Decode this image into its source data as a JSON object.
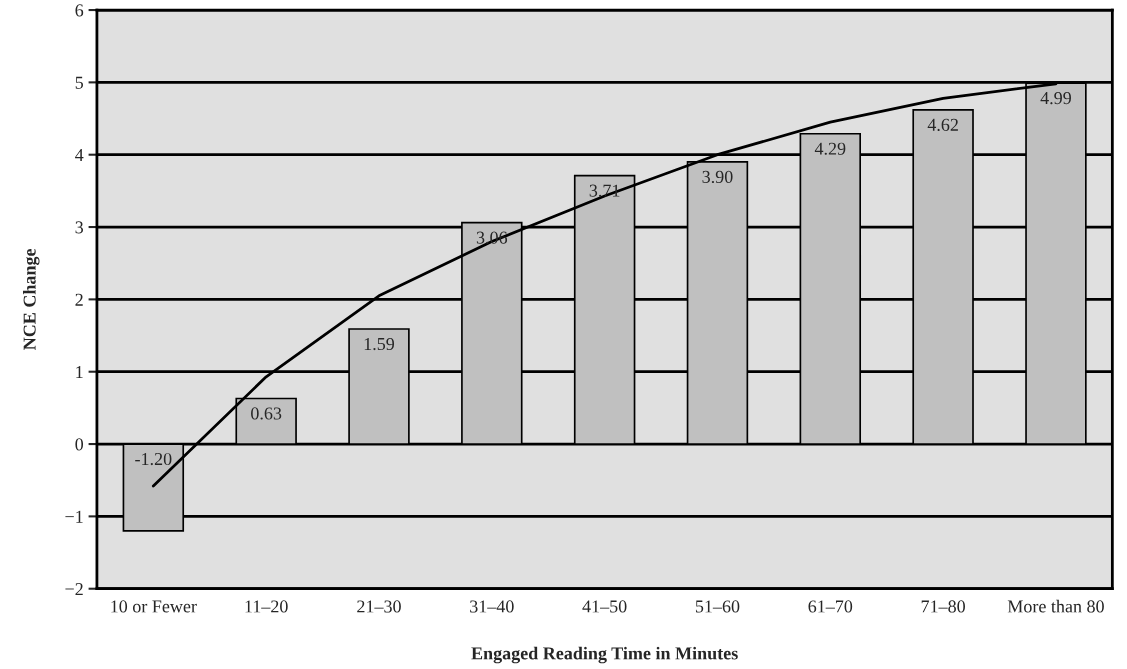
{
  "chart_data": {
    "type": "bar",
    "xlabel": "Engaged Reading Time in Minutes",
    "ylabel": "NCE Change",
    "categories": [
      "10 or Fewer",
      "11–20",
      "21–30",
      "31–40",
      "41–50",
      "51–60",
      "61–70",
      "71–80",
      "More than 80"
    ],
    "series": [
      {
        "color": "#c0c0c0",
        "values": [
          -1.2,
          0.63,
          1.59,
          3.06,
          3.71,
          3.9,
          4.29,
          4.62,
          4.99
        ],
        "value_labels": [
          "-1.20",
          "0.63",
          "1.59",
          "3.06",
          "3.71",
          "3.90",
          "4.29",
          "4.62",
          "4.99"
        ]
      },
      {
        "type": "line",
        "color": "#000000",
        "values": [
          -0.58,
          0.93,
          2.05,
          2.8,
          3.43,
          4.0,
          4.45,
          4.78,
          4.98
        ]
      }
    ],
    "ylim": [
      -2,
      6
    ],
    "yticks": [
      {
        "value": -2,
        "label": "−2"
      },
      {
        "value": -1,
        "label": "−1"
      },
      0,
      1,
      2,
      3,
      4,
      5,
      6
    ],
    "grid": "y",
    "legend": false
  }
}
